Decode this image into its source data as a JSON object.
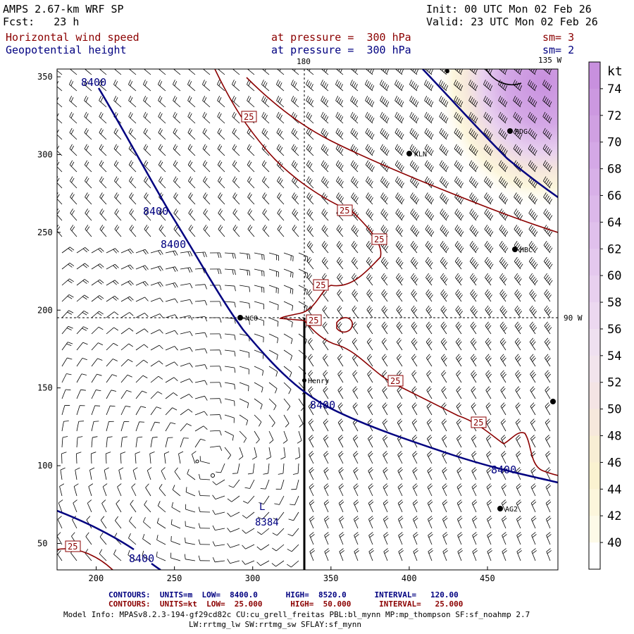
{
  "header": {
    "model": "AMPS 2.67-km WRF SP",
    "forecast": "Fcst:   23 h",
    "init": "Init: 00 UTC Mon 02 Feb 26",
    "valid": "Valid: 23 UTC Mon 02 Feb 26",
    "field1_name": "Horizontal wind speed",
    "field1_level": "at pressure =  300 hPa",
    "field1_sm": "sm= 3",
    "field2_name": "Geopotential height",
    "field2_level": "at pressure =  300 hPa",
    "field2_sm": "sm= 2"
  },
  "map": {
    "lon_labels": {
      "top": "180",
      "top_right": "135 W",
      "right": "90 W"
    },
    "stations": [
      "NCO",
      "Henry",
      "KLN",
      "RDG",
      "HBC",
      "AG2"
    ],
    "contour_labels_height": [
      "8400",
      "8400",
      "8400",
      "8400",
      "8400",
      "8400"
    ],
    "contour_labels_wind": [
      "25",
      "25",
      "25",
      "25",
      "25",
      "25",
      "25"
    ],
    "low_center": {
      "symbol": "L",
      "value": "8384"
    },
    "colors": {
      "height": "#000080",
      "wind": "#8b0000"
    }
  },
  "axes": {
    "x_ticks": [
      "200",
      "250",
      "300",
      "350",
      "400",
      "450"
    ],
    "y_ticks": [
      "350",
      "300",
      "250",
      "200",
      "150",
      "100",
      "50"
    ]
  },
  "colorbar": {
    "unit": "kt",
    "ticks": [
      "74",
      "72",
      "70",
      "68",
      "66",
      "64",
      "62",
      "60",
      "58",
      "56",
      "54",
      "52",
      "50",
      "48",
      "46",
      "44",
      "42",
      "40"
    ],
    "colors": [
      "#c890de",
      "#cc98e0",
      "#d0a0e2",
      "#d4a8e6",
      "#d8b0e8",
      "#dcb8ea",
      "#e0c0ec",
      "#e4c8ee",
      "#e8d0ef",
      "#ecd8f0",
      "#efe0f0",
      "#f2e4ec",
      "#f4e4e4",
      "#f6e8dc",
      "#f8eed4",
      "#faf2d0",
      "#fcf6dc",
      "#fdfae8",
      "#ffffff"
    ]
  },
  "footer": {
    "contours_height": "CONTOURS:  UNITS=m  LOW=  8400.0      HIGH=  8520.0      INTERVAL=   120.00",
    "contours_wind": "CONTOURS:  UNITS=kt  LOW=  25.000      HIGH=  50.000      INTERVAL=   25.000",
    "model_info": "Model Info: MPASv8.2.3-194-gf29cd82c CU:cu_grell_freitas PBL:bl_mynn MP:mp_thompson SF:sf_noahmp 2.7",
    "model_info2": "LW:rrtmg_lw SW:rrtmg_sw SFLAY:sf_mynn"
  }
}
